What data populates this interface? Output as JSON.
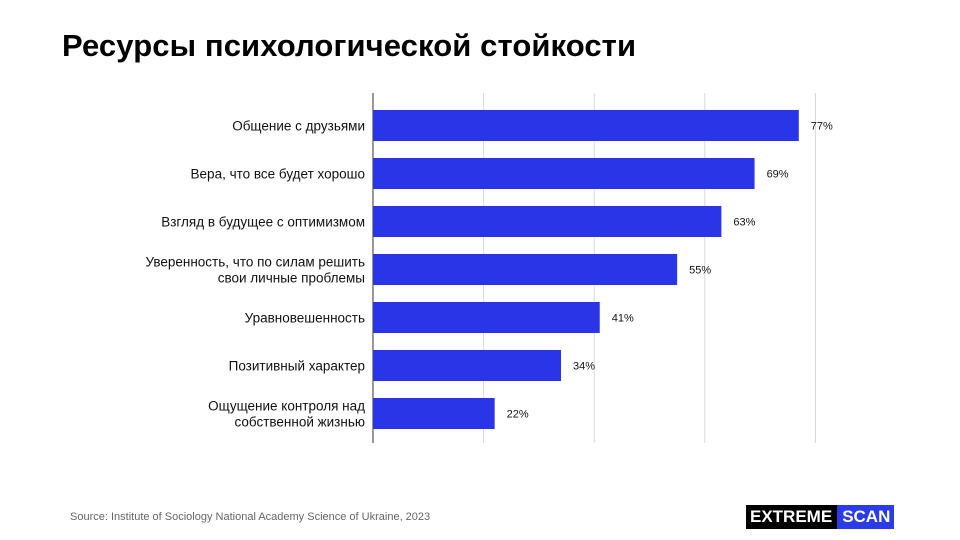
{
  "title": "Ресурсы психологической стойкости",
  "source": "Source: Institute of Sociology National Academy Science of Ukraine, 2023",
  "logo": {
    "part1": "EXTREME",
    "part2": "SCAN"
  },
  "colors": {
    "bar": "#2b35e8",
    "grid": "#d9d9d9",
    "axis": "#555555",
    "logo_accent": "#2a3be8"
  },
  "chart_data": {
    "type": "bar",
    "orientation": "horizontal",
    "categories": [
      "Общение с друзьями",
      "Вера, что все будет хорошо",
      "Взгляд в будущее с оптимизмом",
      "Уверенность, что по силам решить\nсвои личные проблемы",
      "Уравновешенность",
      "Позитивный характер",
      "Ощущение контроля над\nсобственной жизнью"
    ],
    "values": [
      77,
      69,
      63,
      55,
      41,
      34,
      22
    ],
    "value_labels": [
      "77%",
      "69%",
      "63%",
      "55%",
      "41%",
      "34%",
      "22%"
    ],
    "xlim": [
      0,
      100
    ],
    "grid": true,
    "xlabel": "",
    "ylabel": ""
  }
}
